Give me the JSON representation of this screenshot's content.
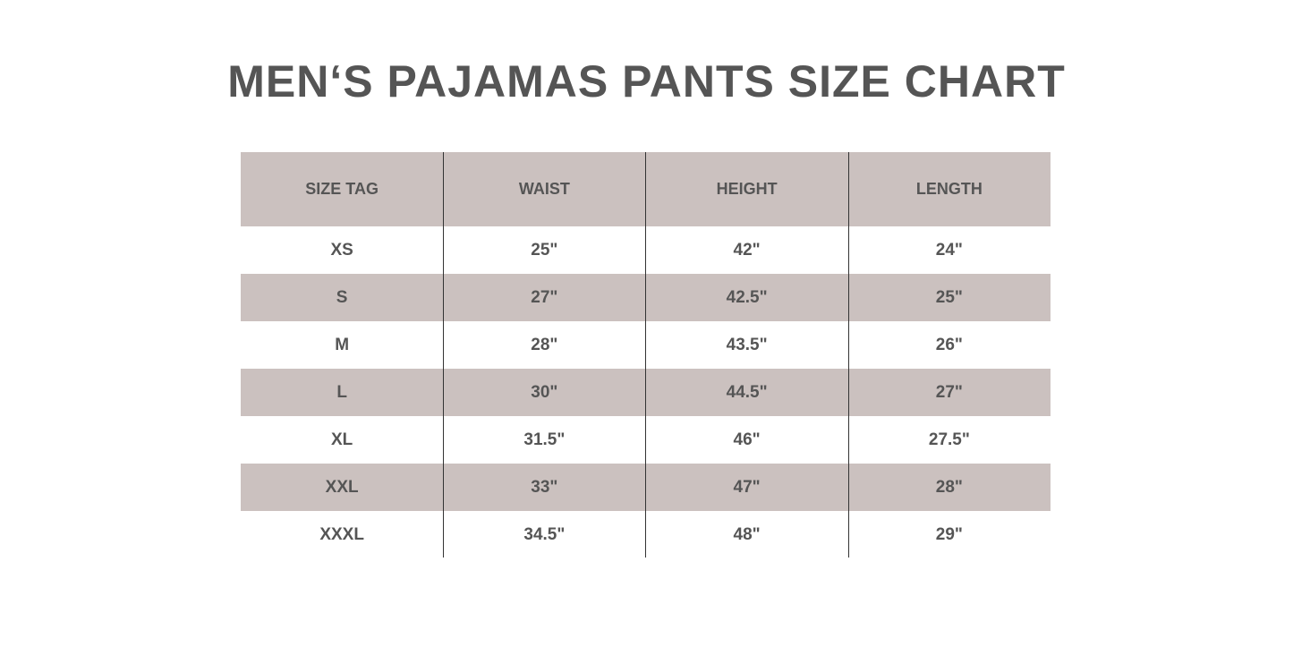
{
  "title": "MEN‘S PAJAMAS PANTS SIZE CHART",
  "colors": {
    "shade": "#cbc1bf",
    "text": "#555555"
  },
  "table": {
    "headers": [
      "SIZE TAG",
      "WAIST",
      "HEIGHT",
      "LENGTH"
    ],
    "rows": [
      [
        "XS",
        "25\"",
        "42\"",
        "24\""
      ],
      [
        "S",
        "27\"",
        "42.5\"",
        "25\""
      ],
      [
        "M",
        "28\"",
        "43.5\"",
        "26\""
      ],
      [
        "L",
        "30\"",
        "44.5\"",
        "27\""
      ],
      [
        "XL",
        "31.5\"",
        "46\"",
        "27.5\""
      ],
      [
        "XXL",
        "33\"",
        "47\"",
        "28\""
      ],
      [
        "XXXL",
        "34.5\"",
        "48\"",
        "29\""
      ]
    ]
  }
}
